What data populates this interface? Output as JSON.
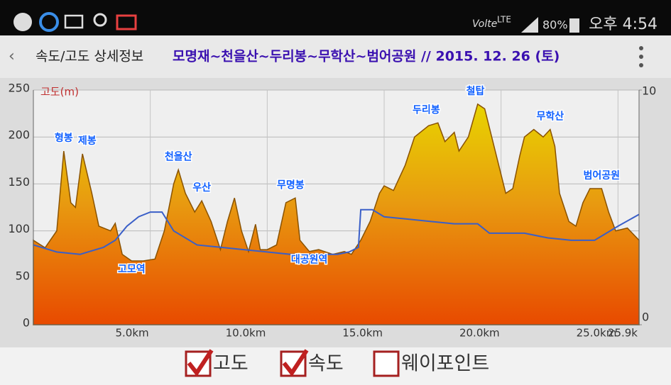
{
  "status_bar": {
    "network": "Volte",
    "lte": "LTE",
    "battery": "80%",
    "time": "오후 4:54"
  },
  "header": {
    "screen": "속도/고도 상세정보",
    "title": "모명재~천을산~두리봉~무학산~범어공원 // 2015. 12. 26 (토)"
  },
  "chart_data": {
    "type": "area",
    "y_label": "고도(m)",
    "xlim": [
      0,
      25.9
    ],
    "xticks": [
      {
        "value": 5,
        "label": "5.0km"
      },
      {
        "value": 10,
        "label": "10.0km"
      },
      {
        "value": 15,
        "label": "15.0km"
      },
      {
        "value": 20,
        "label": "20.0km"
      },
      {
        "value": 25,
        "label": "25.0km"
      },
      {
        "value": 25.9,
        "label": "25.9k"
      }
    ],
    "ylim": [
      0,
      250
    ],
    "yticks": [
      0,
      50,
      100,
      150,
      200,
      250
    ],
    "y2lim": [
      0,
      10
    ],
    "y2ticks": [
      0,
      10
    ],
    "grid": true,
    "series": [
      {
        "name": "고도",
        "color": "#e07000",
        "x": [
          0,
          0.5,
          1.0,
          1.3,
          1.6,
          1.8,
          2.1,
          2.5,
          2.8,
          3.3,
          3.5,
          3.8,
          4.2,
          4.7,
          5.2,
          5.6,
          6.0,
          6.2,
          6.5,
          6.9,
          7.2,
          7.6,
          8.0,
          8.3,
          8.6,
          8.9,
          9.2,
          9.5,
          9.7,
          10.0,
          10.4,
          10.8,
          11.2,
          11.4,
          11.8,
          12.2,
          12.8,
          13.3,
          13.6,
          14.0,
          14.4,
          14.8,
          15.0,
          15.4,
          15.9,
          16.3,
          16.9,
          17.3,
          17.6,
          18.0,
          18.2,
          18.6,
          19.0,
          19.3,
          19.6,
          19.9,
          20.2,
          20.5,
          20.8,
          21.0,
          21.4,
          21.8,
          22.1,
          22.3,
          22.5,
          22.9,
          23.2,
          23.5,
          23.8,
          24.3,
          24.6,
          24.9,
          25.4,
          25.9
        ],
        "values": [
          90,
          82,
          100,
          185,
          130,
          125,
          182,
          140,
          105,
          100,
          108,
          75,
          68,
          68,
          70,
          100,
          150,
          165,
          140,
          120,
          132,
          110,
          80,
          110,
          135,
          100,
          78,
          107,
          80,
          80,
          85,
          130,
          135,
          90,
          78,
          80,
          75,
          78,
          75,
          90,
          110,
          140,
          148,
          143,
          170,
          200,
          212,
          215,
          195,
          205,
          185,
          200,
          235,
          230,
          200,
          170,
          140,
          145,
          180,
          200,
          208,
          200,
          208,
          190,
          140,
          110,
          105,
          130,
          145,
          145,
          120,
          100,
          103,
          90
        ]
      },
      {
        "name": "속도",
        "color": "#3a5fc8",
        "axis": "y2",
        "x": [
          0,
          1,
          2,
          3,
          3.5,
          4,
          4.5,
          5,
          5.5,
          6,
          7,
          8,
          9,
          10,
          11,
          12,
          13,
          13.5,
          13.9,
          14.0,
          14.5,
          15,
          16,
          17,
          18,
          19,
          19.5,
          20,
          21,
          22,
          23,
          24,
          25,
          25.9
        ],
        "values": [
          3.4,
          3.1,
          3.0,
          3.3,
          3.6,
          4.2,
          4.6,
          4.8,
          4.8,
          4.0,
          3.4,
          3.3,
          3.2,
          3.1,
          3.0,
          3.0,
          3.0,
          3.1,
          3.3,
          4.9,
          4.9,
          4.6,
          4.5,
          4.4,
          4.3,
          4.3,
          3.9,
          3.9,
          3.9,
          3.7,
          3.6,
          3.6,
          4.2,
          4.7
        ]
      }
    ],
    "annotations": [
      {
        "text": "형봉",
        "x": 1.3,
        "y": 185,
        "anchor": "above"
      },
      {
        "text": "제봉",
        "x": 2.3,
        "y": 182,
        "anchor": "above"
      },
      {
        "text": "고모역",
        "x": 4.2,
        "y": 68,
        "anchor": "below"
      },
      {
        "text": "천을산",
        "x": 6.2,
        "y": 165,
        "anchor": "above"
      },
      {
        "text": "우산",
        "x": 7.2,
        "y": 132,
        "anchor": "above"
      },
      {
        "text": "무명봉",
        "x": 11.0,
        "y": 135,
        "anchor": "above"
      },
      {
        "text": "대공원역",
        "x": 11.8,
        "y": 78,
        "anchor": "below"
      },
      {
        "text": "두리봉",
        "x": 16.8,
        "y": 215,
        "anchor": "above"
      },
      {
        "text": "철탑",
        "x": 18.9,
        "y": 235,
        "anchor": "above"
      },
      {
        "text": "무학산",
        "x": 22.1,
        "y": 208,
        "anchor": "above"
      },
      {
        "text": "범어공원",
        "x": 24.3,
        "y": 145,
        "anchor": "above"
      }
    ]
  },
  "legend_options": [
    {
      "label": "고도",
      "checked": true
    },
    {
      "label": "속도",
      "checked": true
    },
    {
      "label": "웨이포인트",
      "checked": false
    }
  ]
}
